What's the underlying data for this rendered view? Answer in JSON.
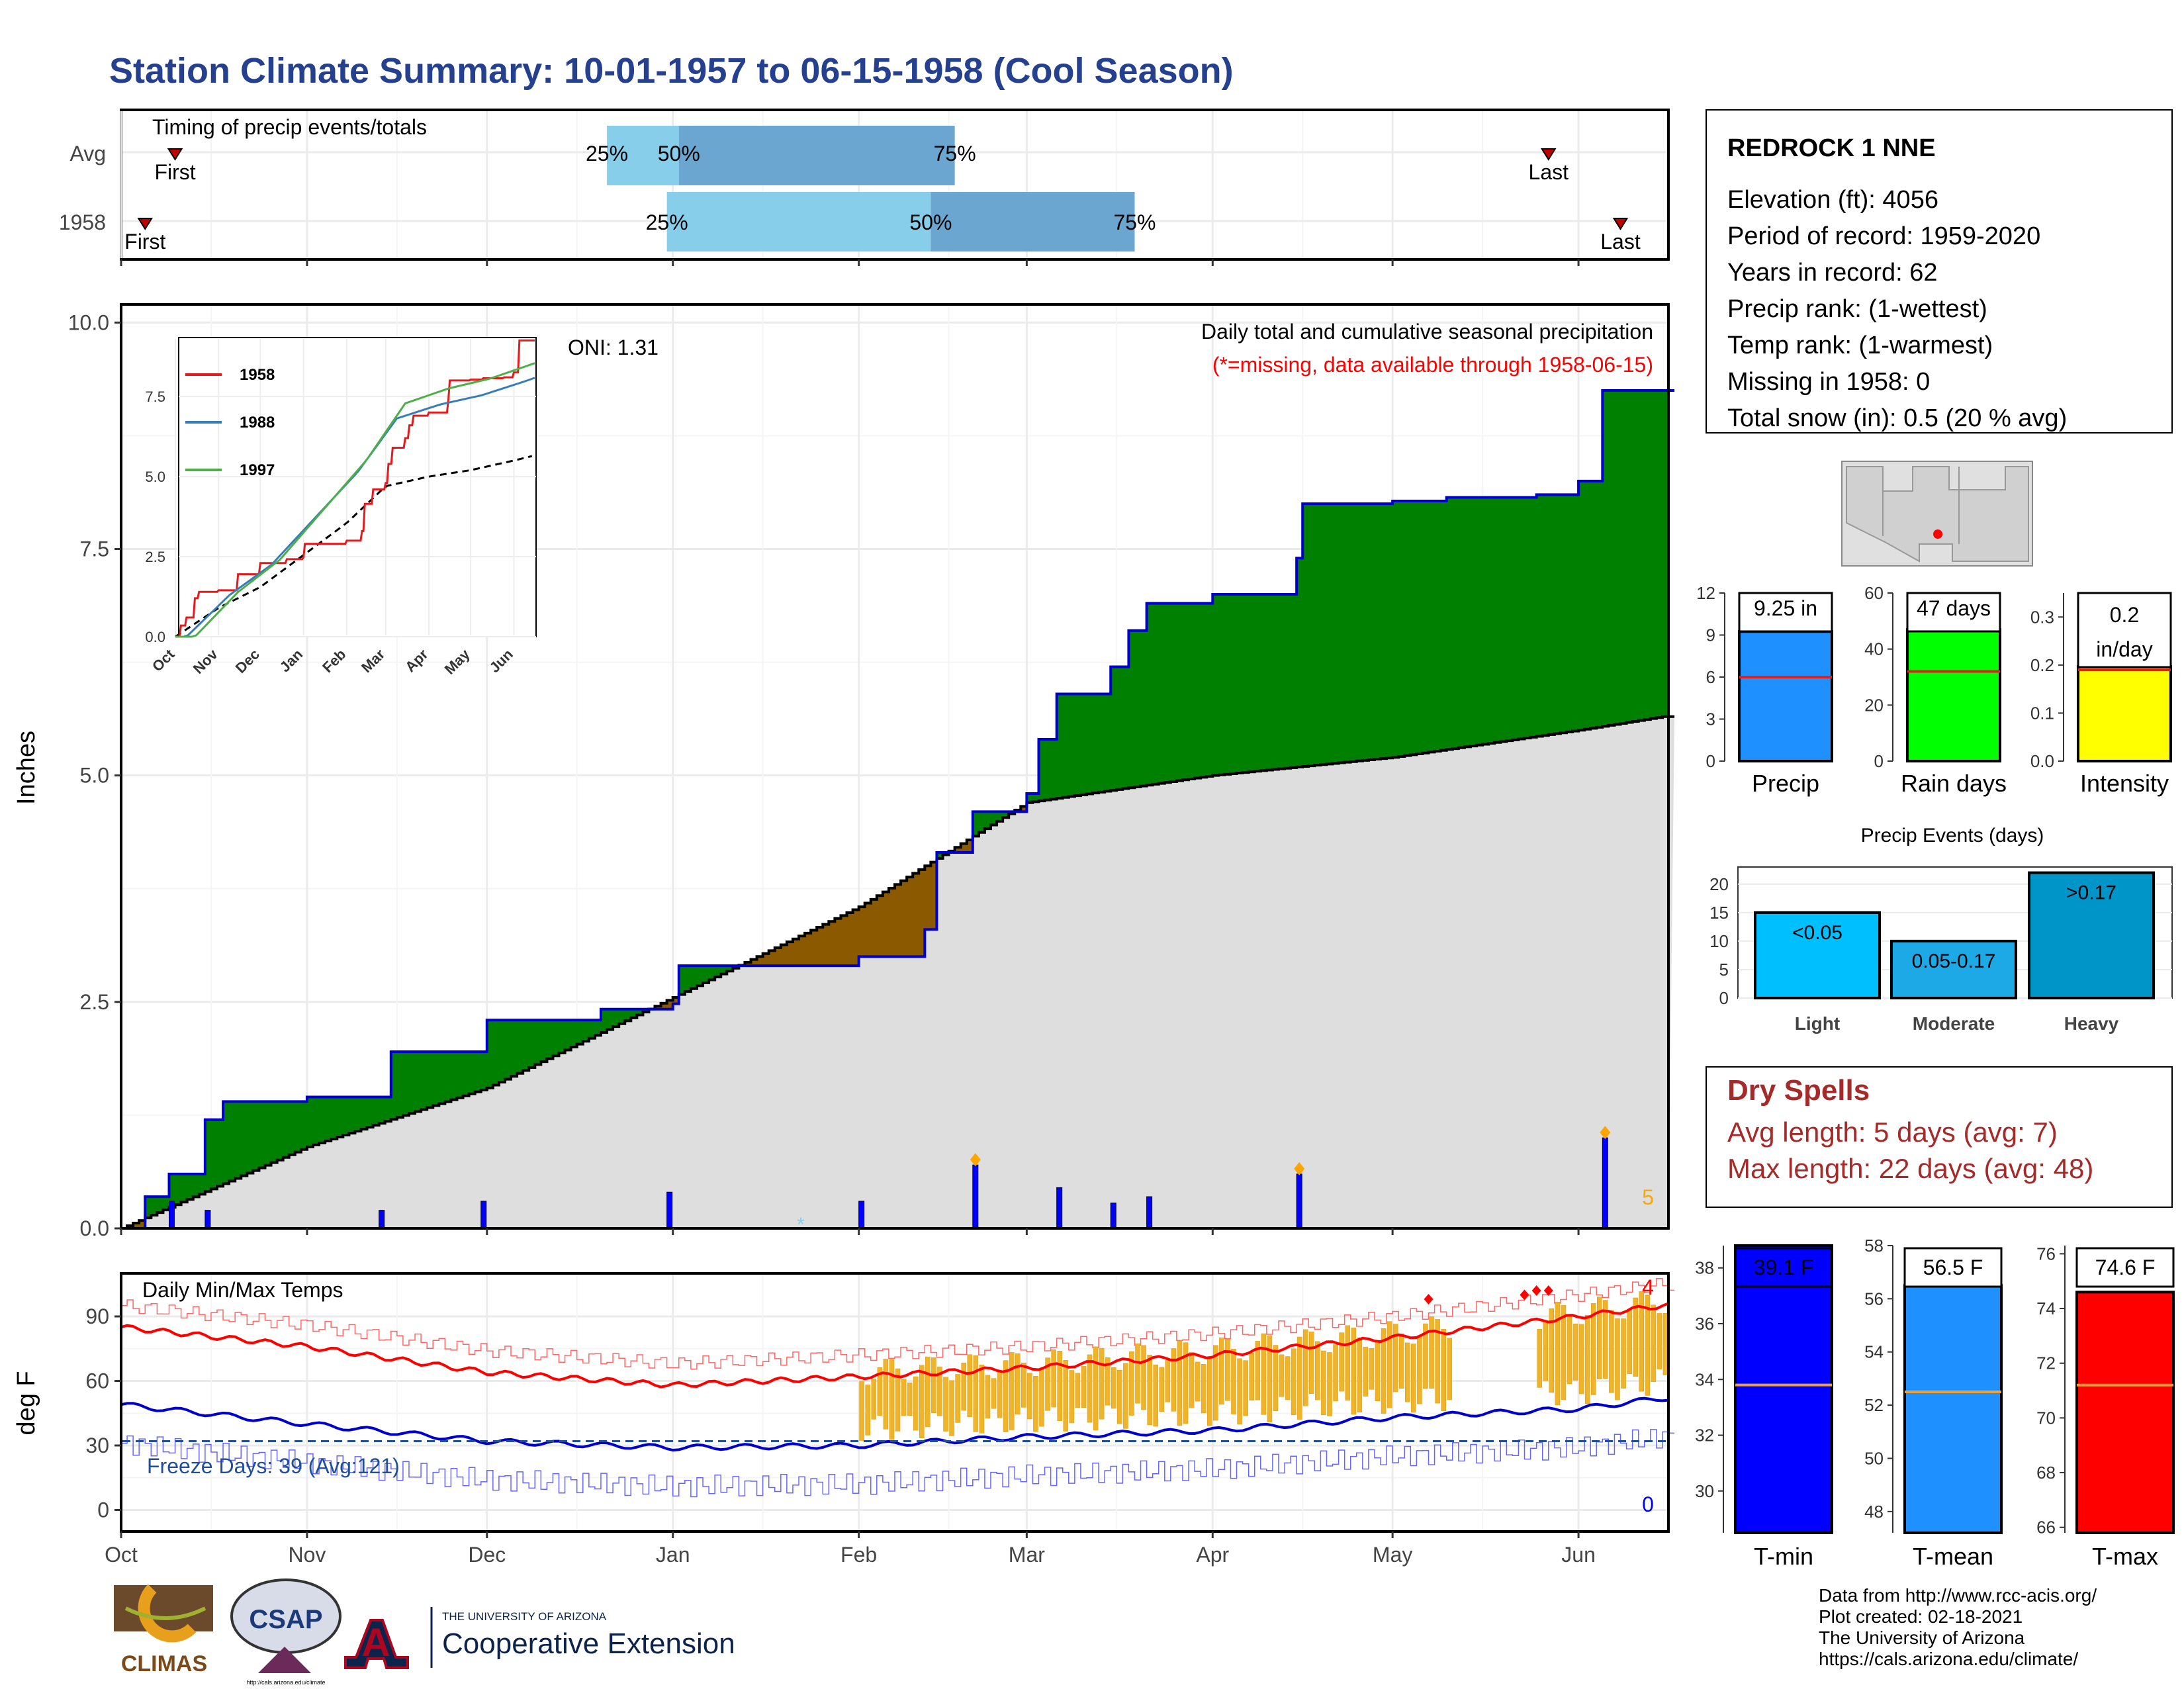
{
  "title": "Station Climate Summary: 10-01-1957 to 06-15-1958 (Cool Season)",
  "timing": {
    "title": "Timing of precip events/totals",
    "rows": [
      {
        "label": "Avg",
        "first": "Oct 10",
        "p25": "Dec 21",
        "p50": "Jan 2",
        "p75": "Feb 17",
        "last": "May 27"
      },
      {
        "label": "1958",
        "first": "Oct 5",
        "p25": "Dec 31",
        "p50": "Feb 13",
        "p75": "Mar 19",
        "last": "Jun 8"
      }
    ],
    "labels": {
      "first": "First",
      "last": "Last",
      "p25": "25%",
      "p50": "50%",
      "p75": "75%"
    }
  },
  "months": [
    "Oct",
    "Nov",
    "Dec",
    "Jan",
    "Feb",
    "Mar",
    "Apr",
    "May",
    "Jun"
  ],
  "precip_panel": {
    "ylabel": "Inches",
    "yticks": [
      "0.0",
      "2.5",
      "5.0",
      "7.5",
      "10.0"
    ],
    "oni": "ONI: 1.31",
    "note1": "Daily total and cumulative seasonal precipitation",
    "note2": "(*=missing, data available through 1958-06-15)",
    "count_label": "5"
  },
  "inset": {
    "legend": [
      "1958",
      "1988",
      "1997"
    ],
    "yticks": [
      "0.0",
      "2.5",
      "5.0",
      "7.5"
    ],
    "xticks": [
      "Oct",
      "Nov",
      "Dec",
      "Jan",
      "Feb",
      "Mar",
      "Apr",
      "May",
      "Jun"
    ]
  },
  "temp_panel": {
    "ylabel": "deg F",
    "title": "Daily Min/Max Temps",
    "freeze": "Freeze Days: 39 (Avg:121)",
    "yticks": [
      "0",
      "30",
      "60",
      "90"
    ],
    "count_hot": "4",
    "count_cold": "0"
  },
  "station": {
    "name": "REDROCK 1 NNE",
    "lines": [
      "Elevation (ft): 4056",
      "Period of record: 1959-2020",
      "Years in record: 62",
      "Precip rank:  (1-wettest)",
      "Temp rank:  (1-warmest)",
      "Missing in 1958: 0",
      "Total snow (in): 0.5 (20 % avg)"
    ]
  },
  "summary_bars": [
    {
      "name": "Precip",
      "value_label": "9.25 in",
      "value": 9.25,
      "avg": 6.0,
      "ymax": 12,
      "yticks": [
        "0",
        "3",
        "6",
        "9",
        "12"
      ],
      "color": "#1e90ff"
    },
    {
      "name": "Rain days",
      "value_label": "47 days",
      "value": 47,
      "avg": 32,
      "ymax": 60,
      "yticks": [
        "0",
        "20",
        "40",
        "60"
      ],
      "color": "#00ff00"
    },
    {
      "name": "Intensity",
      "value_label": "0.2 in/day",
      "value_line1": "0.2",
      "value_line2": "in/day",
      "value": 0.197,
      "avg": 0.19,
      "ymax": 0.35,
      "yticks": [
        "0.0",
        "0.1",
        "0.2",
        "0.3"
      ],
      "color": "#ffff00"
    }
  ],
  "events": {
    "title": "Precip Events (days)",
    "yticks": [
      "0",
      "5",
      "10",
      "15",
      "20"
    ],
    "bars": [
      {
        "label": "<0.05",
        "cat": "Light",
        "value": 15,
        "color": "#00bfff"
      },
      {
        "label": "0.05-0.17",
        "cat": "Moderate",
        "value": 10,
        "color": "#1ca9e6"
      },
      {
        "label": ">0.17",
        "cat": "Heavy",
        "value": 22,
        "color": "#0095c8"
      }
    ]
  },
  "dry_spells": {
    "title": "Dry Spells",
    "avg": "Avg length: 5 days (avg: 7)",
    "max": "Max length: 22 days (avg: 48)"
  },
  "temp_bars": [
    {
      "name": "T-min",
      "value_label": "39.1 F",
      "value": 39.1,
      "avg": 33.8,
      "ymin": 28.5,
      "ymax": 38.8,
      "yticks": [
        "30",
        "32",
        "34",
        "36",
        "38"
      ],
      "color": "#0000ff"
    },
    {
      "name": "T-mean",
      "value_label": "56.5 F",
      "value": 56.5,
      "avg": 52.5,
      "ymin": 47.2,
      "ymax": 58.0,
      "yticks": [
        "48",
        "50",
        "52",
        "54",
        "56",
        "58"
      ],
      "color": "#1e90ff"
    },
    {
      "name": "T-max",
      "value_label": "74.6 F",
      "value": 74.6,
      "avg": 71.2,
      "ymin": 65.8,
      "ymax": 76.3,
      "yticks": [
        "66",
        "68",
        "70",
        "72",
        "74",
        "76"
      ],
      "color": "#ff0000"
    }
  ],
  "footer": {
    "credits": [
      "Data from http://www.rcc-acis.org/",
      "Plot created: 02-18-2021",
      "The University of Arizona",
      "https://cals.arizona.edu/climate/"
    ],
    "logo_climas": "CLIMAS",
    "logo_csap": "CSAP",
    "logo_csap_url": "http://cals.arizona.edu/climate",
    "ua_small": "THE UNIVERSITY OF ARIZONA",
    "ua_big": "Cooperative Extension"
  },
  "chart_data": [
    {
      "type": "area",
      "title": "Daily total and cumulative seasonal precipitation",
      "ylabel": "Inches",
      "ylim": [
        0,
        10
      ],
      "series": [
        {
          "name": "1958",
          "x": [
            "1957-10-01",
            "1957-10-05",
            "1957-10-09",
            "1957-10-15",
            "1957-10-18",
            "1957-11-01",
            "1957-11-15",
            "1957-12-01",
            "1957-12-20",
            "1958-01-01",
            "1958-01-02",
            "1958-01-15",
            "1958-02-01",
            "1958-02-12",
            "1958-02-14",
            "1958-02-20",
            "1958-03-01",
            "1958-03-03",
            "1958-03-06",
            "1958-03-15",
            "1958-03-18",
            "1958-03-21",
            "1958-04-01",
            "1958-04-15",
            "1958-04-16",
            "1958-05-01",
            "1958-05-10",
            "1958-05-25",
            "1958-06-01",
            "1958-06-05",
            "1958-06-15"
          ],
          "y": [
            0,
            0.35,
            0.6,
            1.2,
            1.4,
            1.45,
            1.95,
            2.3,
            2.42,
            2.48,
            2.9,
            2.9,
            3.0,
            3.3,
            4.15,
            4.6,
            4.8,
            5.4,
            5.9,
            6.2,
            6.6,
            6.9,
            7.0,
            7.4,
            8.0,
            8.03,
            8.07,
            8.1,
            8.25,
            9.25,
            9.25
          ]
        },
        {
          "name": "Avg",
          "x": [
            "1957-10-01",
            "1957-11-01",
            "1957-12-01",
            "1958-01-01",
            "1958-02-01",
            "1958-03-01",
            "1958-04-01",
            "1958-05-01",
            "1958-06-01",
            "1958-06-15"
          ],
          "y": [
            0,
            0.9,
            1.55,
            2.55,
            3.55,
            4.7,
            5.0,
            5.2,
            5.5,
            5.65
          ]
        }
      ],
      "daily_bars": {
        "x": [
          "1957-10-09",
          "1957-10-15",
          "1957-11-13",
          "1957-11-30",
          "1957-12-31",
          "1958-02-01",
          "1958-02-20",
          "1958-03-06",
          "1958-03-15",
          "1958-03-21",
          "1958-04-15",
          "1958-06-05"
        ],
        "y": [
          0.3,
          0.2,
          0.2,
          0.3,
          0.4,
          0.3,
          0.7,
          0.45,
          0.28,
          0.35,
          0.6,
          1.0
        ]
      }
    },
    {
      "type": "line",
      "title": "Daily Min/Max Temps",
      "ylabel": "deg F",
      "ylim": [
        -10,
        110
      ],
      "series": [
        {
          "name": "Avg max",
          "x": [
            "1957-10-01",
            "1957-11-01",
            "1957-12-01",
            "1958-01-01",
            "1958-02-01",
            "1958-03-01",
            "1958-04-01",
            "1958-05-01",
            "1958-06-01",
            "1958-06-15"
          ],
          "y": [
            85,
            76,
            64,
            58,
            62,
            66,
            72,
            80,
            90,
            95
          ]
        },
        {
          "name": "Avg min",
          "x": [
            "1957-10-01",
            "1957-11-01",
            "1957-12-01",
            "1958-01-01",
            "1958-02-01",
            "1958-03-01",
            "1958-04-01",
            "1958-05-01",
            "1958-06-01",
            "1958-06-15"
          ],
          "y": [
            49,
            40,
            32,
            29,
            30,
            34,
            37,
            43,
            47,
            52
          ]
        }
      ]
    },
    {
      "type": "bar",
      "title": "Precip Events (days)",
      "categories": [
        "Light",
        "Moderate",
        "Heavy"
      ],
      "values": [
        15,
        10,
        22
      ]
    }
  ]
}
